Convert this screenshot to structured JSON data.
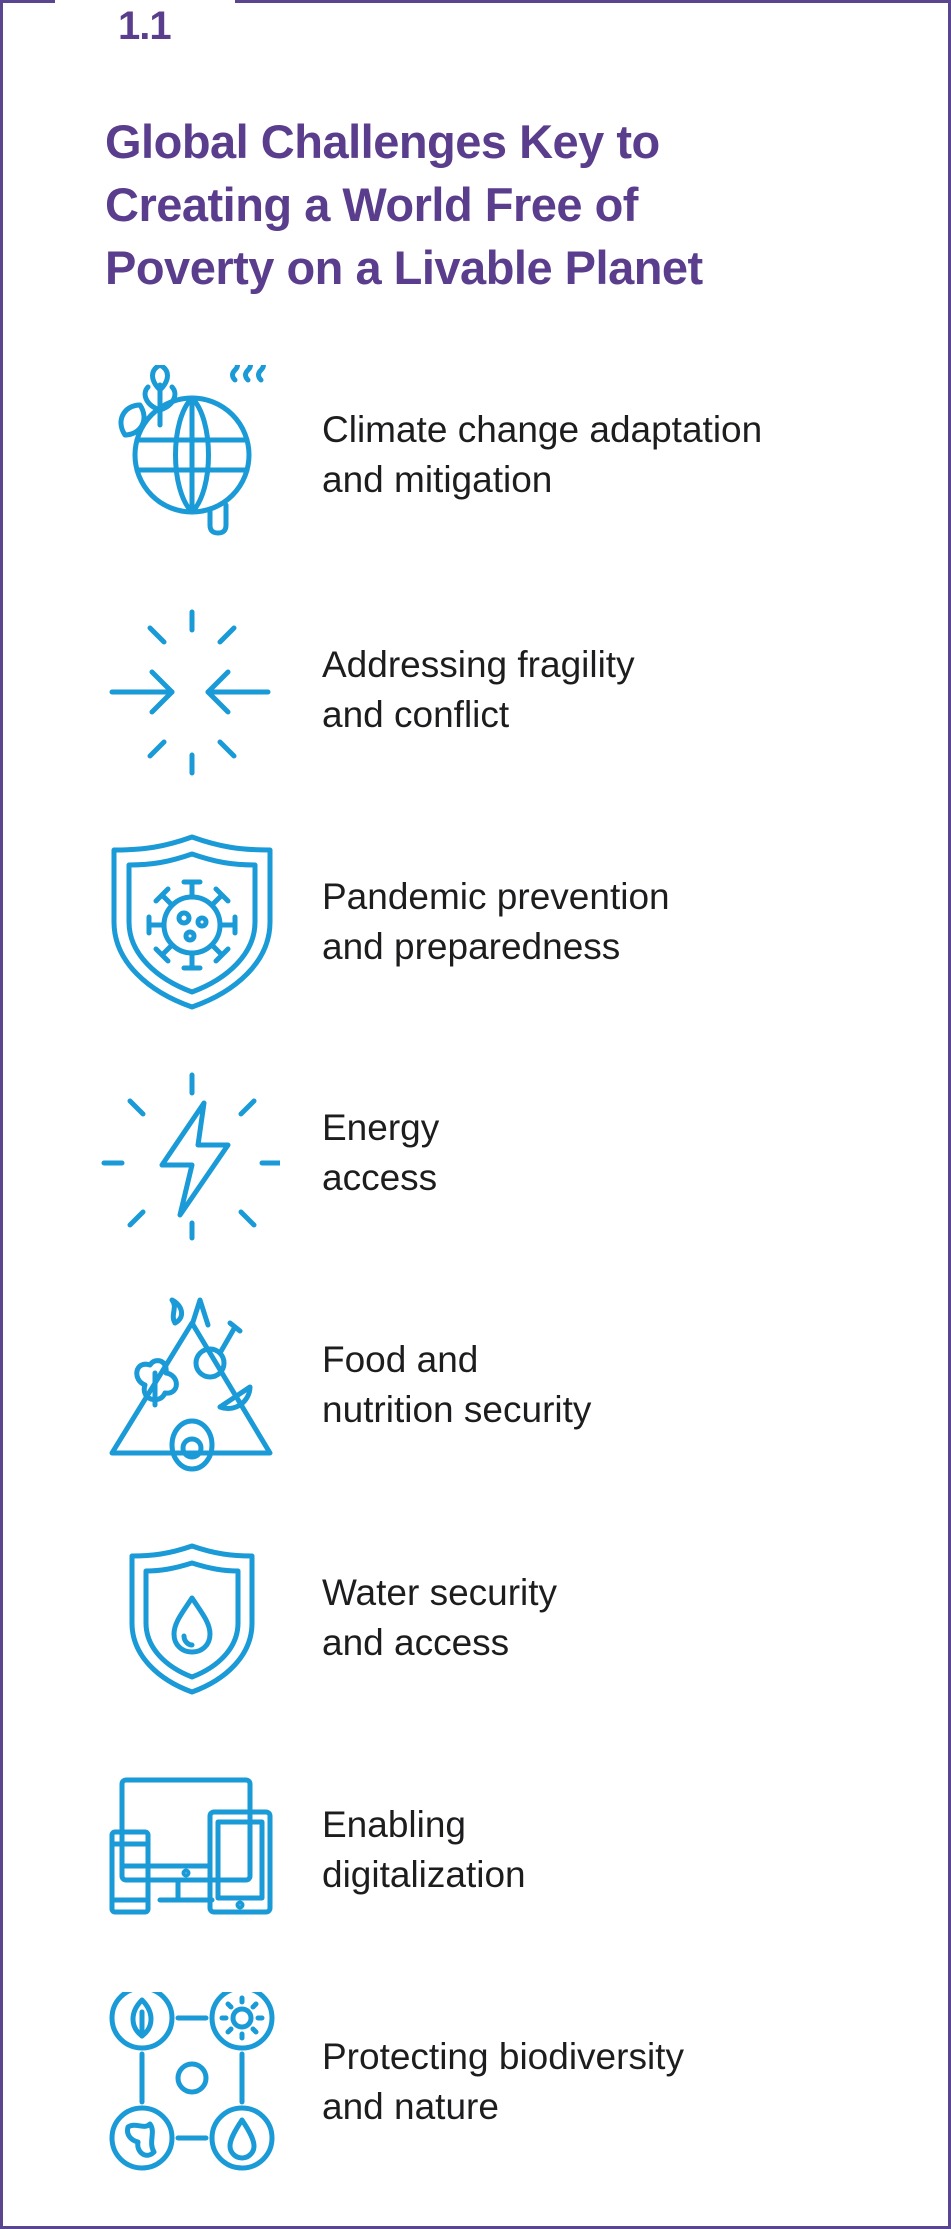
{
  "section_number": "1.1",
  "title": [
    "Global Challenges Key to",
    "Creating a World Free of",
    "Poverty on a Livable Planet"
  ],
  "accent_color": "#5a3d8c",
  "icon_color": "#1a9ad6",
  "items": [
    {
      "icon": "climate-globe-icon",
      "lines": [
        "Climate change adaptation",
        "and mitigation"
      ]
    },
    {
      "icon": "converging-arrows-icon",
      "lines": [
        "Addressing fragility",
        "and conflict"
      ]
    },
    {
      "icon": "virus-shield-icon",
      "lines": [
        "Pandemic prevention",
        "and preparedness"
      ]
    },
    {
      "icon": "lightning-bolt-icon",
      "lines": [
        "Energy",
        "access"
      ]
    },
    {
      "icon": "food-pyramid-icon",
      "lines": [
        "Food and",
        "nutrition security"
      ]
    },
    {
      "icon": "water-shield-icon",
      "lines": [
        "Water security",
        "and access"
      ]
    },
    {
      "icon": "devices-icon",
      "lines": [
        "Enabling",
        "digitalization"
      ]
    },
    {
      "icon": "biodiversity-circles-icon",
      "lines": [
        "Protecting biodiversity",
        "and nature"
      ]
    }
  ]
}
